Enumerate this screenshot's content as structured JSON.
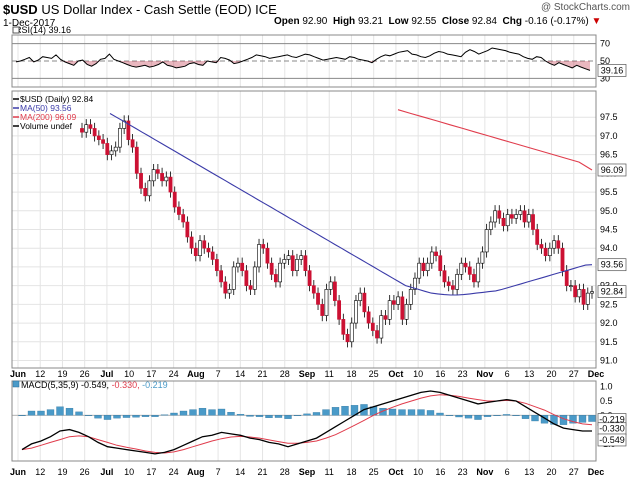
{
  "header": {
    "symbol": "$USD",
    "name": "US Dollar Index - Cash Settle (EOD)",
    "exchange": "ICE",
    "date": "1-Dec-2017",
    "watermark": "@ StockCharts.com",
    "open_label": "Open",
    "open": "92.90",
    "high_label": "High",
    "high": "93.21",
    "low_label": "Low",
    "low": "92.55",
    "close_label": "Close",
    "close": "92.84",
    "chg_label": "Chg",
    "chg": "-0.16 (-0.17%)"
  },
  "colors": {
    "up": "#ffffff",
    "down": "#cc1133",
    "ma50": "#3a3aa8",
    "ma200": "#e03c4c",
    "macd": "#000000",
    "signal": "#e03c4c",
    "histogram": "#4a9ac8",
    "rsi": "#000000",
    "rsi_fill": "#c03048"
  },
  "chart_data": [
    {
      "type": "line",
      "panel": "rsi",
      "legend": "RSI(14) 39.16",
      "ylim": [
        20,
        80
      ],
      "yticks": [
        70,
        50,
        30
      ],
      "reference_lines": [
        70,
        50,
        30
      ],
      "last_value": "39.16",
      "values": [
        49,
        50,
        52,
        54,
        49,
        51,
        55,
        54,
        53,
        57,
        52,
        49,
        47,
        45,
        50,
        51,
        46,
        44,
        47,
        52,
        53,
        58,
        52,
        50,
        48,
        46,
        44,
        43,
        44,
        45,
        43,
        44,
        46,
        49,
        45,
        44,
        42,
        43,
        44,
        47,
        48,
        46,
        45,
        50,
        49,
        48,
        54,
        53,
        51,
        47,
        48,
        50,
        52,
        54,
        57,
        56,
        55,
        53,
        54,
        55,
        56,
        57,
        55,
        54,
        56,
        58,
        57,
        55,
        53,
        51,
        52,
        53,
        54,
        53,
        52,
        55,
        54,
        52,
        51,
        50,
        48,
        52,
        55,
        57,
        56,
        58,
        60,
        61,
        62,
        58,
        57,
        55,
        54,
        56,
        59,
        61,
        60,
        58,
        57,
        56,
        55,
        60,
        63,
        61,
        58,
        60,
        62,
        65,
        64,
        63,
        62,
        60,
        59,
        58,
        55,
        53,
        52,
        55,
        54,
        50,
        47,
        45,
        48,
        46,
        44,
        42,
        45,
        43,
        41,
        39.16
      ]
    },
    {
      "type": "ohlc-candlestick",
      "panel": "price",
      "legend": [
        "$USD (Daily) 92.84",
        "MA(50) 93.56",
        "MA(200) 96.09",
        "Volume undef"
      ],
      "ylim": [
        90.8,
        98.2
      ],
      "yticks": [
        97.5,
        97.0,
        96.5,
        96.0,
        95.5,
        95.0,
        94.5,
        94.0,
        93.5,
        93.0,
        92.5,
        92.0,
        91.5,
        91.0
      ],
      "x_labels": [
        "Jun",
        "12",
        "19",
        "26",
        "Jul",
        "10",
        "17",
        "24",
        "Aug",
        "7",
        "14",
        "21",
        "28",
        "Sep",
        "11",
        "18",
        "25",
        "Oct",
        "10",
        "16",
        "23",
        "Nov",
        "6",
        "13",
        "20",
        "27",
        "Dec"
      ],
      "series": [
        {
          "name": "$USD (Daily)",
          "last": "92.84",
          "close": [
            97.1,
            97.3,
            97.2,
            97.0,
            96.9,
            96.8,
            96.5,
            96.6,
            96.7,
            97.2,
            97.4,
            96.9,
            96.7,
            96.0,
            95.6,
            95.4,
            95.8,
            96.1,
            96.0,
            95.8,
            95.9,
            95.5,
            95.1,
            94.9,
            94.7,
            94.3,
            94.0,
            93.8,
            94.2,
            94.0,
            93.9,
            93.7,
            93.4,
            93.1,
            92.8,
            92.9,
            93.5,
            93.6,
            93.4,
            93.0,
            92.9,
            93.5,
            94.1,
            94.0,
            93.6,
            93.3,
            93.1,
            93.6,
            93.7,
            93.8,
            93.4,
            93.7,
            93.8,
            93.4,
            93.0,
            92.8,
            92.5,
            92.2,
            92.9,
            93.1,
            92.6,
            92.1,
            91.7,
            91.5,
            92.0,
            92.6,
            92.8,
            92.3,
            92.0,
            91.8,
            91.6,
            92.2,
            92.1,
            92.6,
            92.5,
            92.7,
            92.1,
            92.5,
            92.9,
            93.2,
            93.6,
            93.4,
            93.6,
            93.9,
            93.8,
            93.4,
            93.1,
            93.0,
            92.9,
            93.3,
            93.6,
            93.5,
            93.3,
            93.1,
            93.6,
            93.9,
            94.5,
            94.7,
            95.0,
            94.8,
            94.6,
            94.9,
            94.8,
            94.9,
            95.0,
            94.7,
            94.9,
            94.5,
            94.1,
            94.0,
            93.8,
            94.0,
            94.2,
            94.0,
            93.4,
            93.0,
            93.0,
            92.7,
            92.9,
            92.5,
            92.8,
            92.84
          ]
        },
        {
          "name": "MA(50)",
          "last": "93.56",
          "values": [
            97.6,
            97.5,
            97.4,
            97.3,
            97.2,
            97.1,
            97.0,
            96.9,
            96.8,
            96.7,
            96.6,
            96.5,
            96.4,
            96.3,
            96.2,
            96.1,
            96.0,
            95.9,
            95.8,
            95.7,
            95.6,
            95.5,
            95.4,
            95.3,
            95.2,
            95.1,
            95.0,
            94.9,
            94.8,
            94.7,
            94.6,
            94.5,
            94.4,
            94.3,
            94.2,
            94.1,
            94.0,
            93.9,
            93.8,
            93.7,
            93.6,
            93.5,
            93.4,
            93.3,
            93.2,
            93.1,
            93.0,
            92.95,
            92.9,
            92.85,
            92.8,
            92.78,
            92.76,
            92.75,
            92.75,
            92.76,
            92.78,
            92.8,
            92.82,
            92.84,
            92.86,
            92.9,
            92.95,
            93.0,
            93.05,
            93.1,
            93.15,
            93.2,
            93.25,
            93.3,
            93.35,
            93.4,
            93.45,
            93.5,
            93.55,
            93.56
          ]
        },
        {
          "name": "MA(200)",
          "last": "96.09",
          "values": [
            97.7,
            97.6,
            97.5,
            97.4,
            97.3,
            97.2,
            97.1,
            97.0,
            96.9,
            96.8,
            96.7,
            96.6,
            96.5,
            96.4,
            96.3,
            96.09
          ]
        },
        {
          "name": "Volume",
          "last": "undef"
        }
      ]
    },
    {
      "type": "line",
      "panel": "macd",
      "legend_name": "MACD(5,35,9)",
      "legend_values": [
        "-0.549",
        "-0.330",
        "-0.219"
      ],
      "ylim": [
        -1.6,
        1.2
      ],
      "yticks": [
        "1.0",
        "0.5",
        "0.0",
        "-0.5",
        "-1.0"
      ],
      "x_labels": [
        "Jun",
        "12",
        "19",
        "26",
        "Jul",
        "10",
        "17",
        "24",
        "Aug",
        "7",
        "14",
        "21",
        "28",
        "Sep",
        "11",
        "18",
        "25",
        "Oct",
        "10",
        "16",
        "23",
        "Nov",
        "6",
        "13",
        "20",
        "27",
        "Dec"
      ],
      "last_values": [
        "-0.219",
        "-0.330",
        "-0.549"
      ],
      "series": [
        {
          "name": "MACD",
          "values": [
            -1.2,
            -1.0,
            -0.9,
            -0.75,
            -0.55,
            -0.5,
            -0.6,
            -0.75,
            -0.95,
            -1.1,
            -1.15,
            -1.2,
            -1.25,
            -1.3,
            -1.35,
            -1.3,
            -1.2,
            -1.05,
            -0.9,
            -0.75,
            -0.7,
            -0.6,
            -0.65,
            -0.7,
            -0.8,
            -0.85,
            -0.95,
            -1.0,
            -1.1,
            -1.0,
            -0.9,
            -0.8,
            -0.6,
            -0.4,
            -0.2,
            0.0,
            0.2,
            0.3,
            0.4,
            0.5,
            0.6,
            0.7,
            0.8,
            0.85,
            0.8,
            0.7,
            0.6,
            0.5,
            0.4,
            0.45,
            0.5,
            0.55,
            0.5,
            0.3,
            0.1,
            -0.1,
            -0.3,
            -0.45,
            -0.5,
            -0.55,
            -0.549
          ]
        },
        {
          "name": "Signal",
          "values": [
            -1.2,
            -1.15,
            -1.05,
            -0.95,
            -0.85,
            -0.75,
            -0.72,
            -0.75,
            -0.85,
            -0.95,
            -1.05,
            -1.12,
            -1.18,
            -1.25,
            -1.3,
            -1.32,
            -1.28,
            -1.2,
            -1.1,
            -1.0,
            -0.9,
            -0.82,
            -0.76,
            -0.74,
            -0.76,
            -0.8,
            -0.86,
            -0.92,
            -0.98,
            -0.98,
            -0.95,
            -0.9,
            -0.8,
            -0.68,
            -0.52,
            -0.35,
            -0.18,
            0.0,
            0.15,
            0.28,
            0.4,
            0.5,
            0.6,
            0.68,
            0.72,
            0.7,
            0.66,
            0.6,
            0.55,
            0.5,
            0.5,
            0.52,
            0.5,
            0.42,
            0.3,
            0.18,
            0.02,
            -0.12,
            -0.22,
            -0.3,
            -0.33
          ]
        },
        {
          "name": "Histogram",
          "values": [
            0.0,
            0.15,
            0.15,
            0.2,
            0.3,
            0.25,
            0.12,
            0.0,
            -0.1,
            -0.15,
            -0.1,
            -0.08,
            -0.07,
            -0.05,
            -0.05,
            0.02,
            0.08,
            0.15,
            0.2,
            0.25,
            0.2,
            0.22,
            0.11,
            0.04,
            -0.04,
            -0.05,
            -0.09,
            -0.08,
            -0.12,
            -0.02,
            0.05,
            0.1,
            0.2,
            0.28,
            0.32,
            0.35,
            0.38,
            0.3,
            0.25,
            0.22,
            0.2,
            0.2,
            0.2,
            0.17,
            0.08,
            0.0,
            -0.06,
            -0.1,
            -0.15,
            -0.05,
            0.0,
            0.03,
            0.0,
            -0.12,
            -0.2,
            -0.28,
            -0.32,
            -0.33,
            -0.28,
            -0.25,
            -0.219
          ]
        }
      ]
    }
  ]
}
